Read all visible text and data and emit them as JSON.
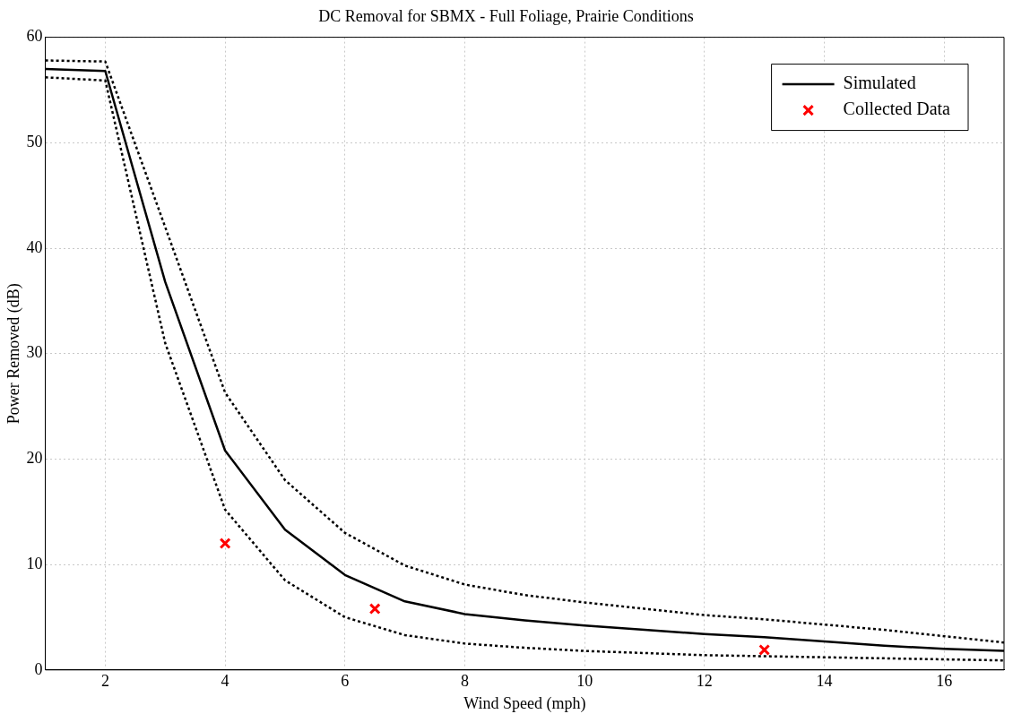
{
  "chart_data": {
    "type": "line",
    "title": "DC Removal for SBMX - Full Foliage, Prairie Conditions",
    "xlabel": "Wind Speed (mph)",
    "ylabel": "Power Removed (dB)",
    "xlim": [
      1,
      17
    ],
    "xticks": [
      2,
      4,
      6,
      8,
      10,
      12,
      14,
      16
    ],
    "ylim": [
      0,
      60
    ],
    "yticks": [
      0,
      10,
      20,
      30,
      40,
      50,
      60
    ],
    "grid": true,
    "legend": "top right",
    "series": [
      {
        "name": "Simulated",
        "color": "#000000",
        "line_style": "solid",
        "x": [
          1,
          2,
          3,
          4,
          5,
          6,
          7,
          8,
          9,
          10,
          11,
          12,
          13,
          14,
          15,
          16,
          17
        ],
        "values": [
          57,
          56.8,
          36.8,
          20.8,
          13.3,
          9,
          6.5,
          5.3,
          4.7,
          4.2,
          3.8,
          3.4,
          3.1,
          2.7,
          2.3,
          2.0,
          1.8
        ]
      },
      {
        "color": "#000000",
        "line_style": "dotted",
        "x": [
          1,
          2,
          3,
          4,
          5,
          6,
          7,
          8,
          9,
          10,
          11,
          12,
          13,
          14,
          15,
          16,
          17
        ],
        "values": [
          57.8,
          57.7,
          42,
          26.3,
          18,
          13,
          9.9,
          8.1,
          7.1,
          6.4,
          5.8,
          5.2,
          4.8,
          4.3,
          3.8,
          3.2,
          2.6
        ]
      },
      {
        "color": "#000000",
        "line_style": "dotted",
        "x": [
          1,
          2,
          3,
          4,
          5,
          6,
          7,
          8,
          9,
          10,
          11,
          12,
          13,
          14,
          15,
          16,
          17
        ],
        "values": [
          56.2,
          55.9,
          31,
          15.2,
          8.5,
          5,
          3.3,
          2.5,
          2.1,
          1.8,
          1.6,
          1.4,
          1.3,
          1.2,
          1.1,
          1.0,
          0.9
        ]
      },
      {
        "name": "Collected Data",
        "type": "scatter",
        "color": "#ff0000",
        "marker": "cross",
        "x": [
          4,
          6.5,
          13
        ],
        "values": [
          12,
          5.8,
          1.9
        ]
      }
    ]
  }
}
